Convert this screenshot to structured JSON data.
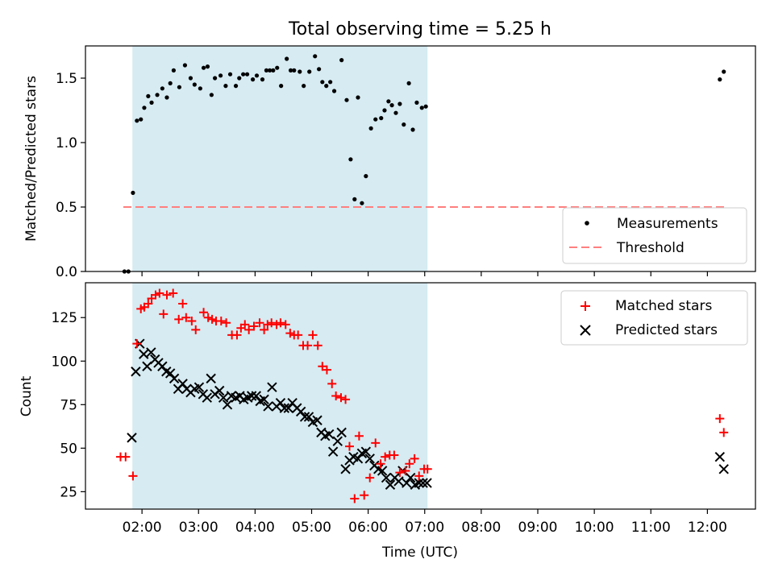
{
  "chart_data": {
    "type": "scatter",
    "title": "Total observing time = 5.25 h",
    "xlabel": "Time (UTC)",
    "x_unit": "hours UTC",
    "xlim": [
      1.0,
      12.85
    ],
    "x_ticks": [
      2,
      3,
      4,
      5,
      6,
      7,
      8,
      9,
      10,
      11,
      12
    ],
    "x_tick_labels": [
      "02:00",
      "03:00",
      "04:00",
      "05:00",
      "06:00",
      "07:00",
      "08:00",
      "09:00",
      "10:00",
      "11:00",
      "12:00"
    ],
    "observing_window": {
      "start": 1.83,
      "end": 7.05,
      "color": "#add8e6"
    },
    "panels": [
      {
        "ylabel": "Matched/Predicted stars",
        "ylim": [
          0,
          1.75
        ],
        "y_ticks": [
          0.0,
          0.5,
          1.0,
          1.5
        ],
        "y_tick_labels": [
          "0.0",
          "0.5",
          "1.0",
          "1.5"
        ],
        "legend": {
          "position": "lower-right",
          "entries": [
            "Measurements",
            "Threshold"
          ]
        },
        "threshold": {
          "name": "Threshold",
          "y": 0.5,
          "x_range": [
            1.67,
            12.33
          ],
          "color": "#ff7f7f",
          "style": "dashed"
        },
        "series": [
          {
            "name": "Measurements",
            "marker": "dot",
            "color": "#000000",
            "x": [
              1.69,
              1.76,
              1.84,
              1.91,
              1.98,
              2.04,
              2.11,
              2.17,
              2.27,
              2.36,
              2.44,
              2.5,
              2.56,
              2.66,
              2.76,
              2.86,
              2.93,
              3.03,
              3.09,
              3.16,
              3.23,
              3.29,
              3.39,
              3.48,
              3.56,
              3.66,
              3.72,
              3.79,
              3.86,
              3.96,
              4.03,
              4.13,
              4.2,
              4.26,
              4.32,
              4.39,
              4.46,
              4.56,
              4.63,
              4.69,
              4.79,
              4.86,
              4.96,
              5.06,
              5.13,
              5.19,
              5.26,
              5.33,
              5.4,
              5.53,
              5.62,
              5.69,
              5.76,
              5.82,
              5.89,
              5.96,
              6.05,
              6.13,
              6.23,
              6.29,
              6.36,
              6.42,
              6.49,
              6.56,
              6.63,
              6.72,
              6.79,
              6.86,
              6.95,
              7.02,
              12.22,
              12.29
            ],
            "y": [
              0.0,
              0.0,
              0.61,
              1.17,
              1.18,
              1.27,
              1.36,
              1.31,
              1.37,
              1.42,
              1.35,
              1.46,
              1.56,
              1.43,
              1.6,
              1.5,
              1.45,
              1.42,
              1.58,
              1.59,
              1.37,
              1.5,
              1.52,
              1.44,
              1.53,
              1.44,
              1.5,
              1.53,
              1.53,
              1.49,
              1.52,
              1.49,
              1.56,
              1.56,
              1.56,
              1.58,
              1.44,
              1.65,
              1.56,
              1.56,
              1.55,
              1.44,
              1.55,
              1.67,
              1.57,
              1.47,
              1.44,
              1.47,
              1.4,
              1.64,
              1.33,
              0.87,
              0.56,
              1.35,
              0.53,
              0.74,
              1.11,
              1.18,
              1.19,
              1.25,
              1.32,
              1.29,
              1.23,
              1.3,
              1.14,
              1.46,
              1.1,
              1.31,
              1.27,
              1.28,
              1.49,
              1.55
            ]
          }
        ]
      },
      {
        "ylabel": "Count",
        "ylim": [
          15,
          145
        ],
        "y_ticks": [
          25,
          50,
          75,
          100,
          125
        ],
        "y_tick_labels": [
          "25",
          "50",
          "75",
          "100",
          "125"
        ],
        "legend": {
          "position": "top-right",
          "entries": [
            "Matched stars",
            "Predicted stars"
          ]
        },
        "series": [
          {
            "name": "Matched stars",
            "marker": "plus",
            "color": "#ff0000",
            "x": [
              1.62,
              1.71,
              1.84,
              1.91,
              1.98,
              2.04,
              2.11,
              2.17,
              2.24,
              2.31,
              2.38,
              2.44,
              2.55,
              2.65,
              2.72,
              2.78,
              2.88,
              2.95,
              3.09,
              3.17,
              3.24,
              3.31,
              3.4,
              3.49,
              3.59,
              3.68,
              3.75,
              3.82,
              3.89,
              3.98,
              4.08,
              4.16,
              4.22,
              4.29,
              4.38,
              4.45,
              4.54,
              4.62,
              4.69,
              4.76,
              4.85,
              4.93,
              5.02,
              5.11,
              5.19,
              5.27,
              5.36,
              5.43,
              5.52,
              5.6,
              5.67,
              5.76,
              5.84,
              5.93,
              6.03,
              6.13,
              6.22,
              6.3,
              6.38,
              6.46,
              6.56,
              6.66,
              6.73,
              6.82,
              6.9,
              6.99,
              7.05,
              12.22,
              12.29
            ],
            "y": [
              45,
              45,
              34,
              110,
              130,
              131,
              133,
              136,
              138,
              139,
              127,
              138,
              139,
              124,
              133,
              125,
              123,
              118,
              128,
              125,
              124,
              123,
              123,
              122,
              115,
              115,
              119,
              121,
              118,
              120,
              122,
              118,
              121,
              122,
              121,
              122,
              121,
              116,
              115,
              115,
              109,
              109,
              115,
              109,
              97,
              95,
              87,
              80,
              79,
              78,
              51,
              21,
              57,
              23,
              33,
              53,
              41,
              45,
              46,
              46,
              36,
              37,
              41,
              44,
              34,
              38,
              38,
              67,
              59
            ]
          },
          {
            "name": "Predicted stars",
            "marker": "x",
            "color": "#000000",
            "x": [
              1.82,
              1.89,
              1.96,
              2.03,
              2.09,
              2.16,
              2.23,
              2.29,
              2.36,
              2.43,
              2.5,
              2.57,
              2.64,
              2.72,
              2.79,
              2.86,
              2.93,
              3.01,
              3.08,
              3.15,
              3.22,
              3.29,
              3.37,
              3.44,
              3.51,
              3.58,
              3.66,
              3.73,
              3.8,
              3.87,
              3.94,
              4.02,
              4.09,
              4.16,
              4.23,
              4.3,
              4.38,
              4.45,
              4.52,
              4.59,
              4.66,
              4.74,
              4.81,
              4.88,
              4.95,
              5.02,
              5.1,
              5.17,
              5.24,
              5.31,
              5.38,
              5.46,
              5.53,
              5.6,
              5.67,
              5.74,
              5.82,
              5.89,
              5.96,
              6.03,
              6.11,
              6.18,
              6.25,
              6.32,
              6.39,
              6.47,
              6.54,
              6.61,
              6.68,
              6.75,
              6.83,
              6.9,
              6.97,
              7.04,
              12.22,
              12.29
            ],
            "y": [
              56,
              94,
              110,
              104,
              97,
              105,
              101,
              99,
              97,
              94,
              93,
              90,
              84,
              87,
              84,
              82,
              84,
              85,
              81,
              79,
              90,
              81,
              83,
              79,
              75,
              80,
              79,
              80,
              78,
              79,
              80,
              80,
              77,
              78,
              74,
              85,
              74,
              76,
              73,
              73,
              76,
              73,
              71,
              68,
              68,
              65,
              66,
              59,
              57,
              58,
              48,
              54,
              59,
              38,
              43,
              45,
              44,
              47,
              48,
              44,
              40,
              38,
              37,
              33,
              29,
              33,
              31,
              37,
              30,
              33,
              29,
              30,
              30,
              30,
              45,
              38
            ]
          }
        ]
      }
    ]
  }
}
